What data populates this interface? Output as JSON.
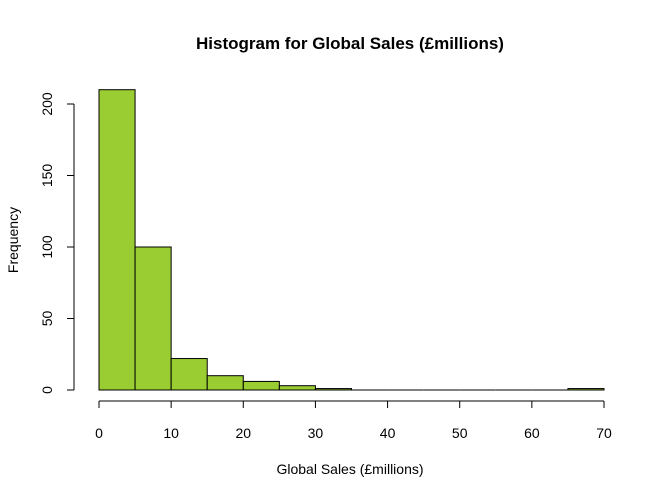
{
  "chart_data": {
    "type": "bar",
    "title": "Histogram for Global Sales (£millions)",
    "xlabel": "Global Sales (£millions)",
    "ylabel": "Frequency",
    "bin_edges": [
      0,
      5,
      10,
      15,
      20,
      25,
      30,
      35,
      40,
      45,
      50,
      55,
      60,
      65,
      70
    ],
    "values": [
      210,
      100,
      22,
      10,
      6,
      3,
      1,
      0,
      0,
      0,
      0,
      0,
      0,
      1
    ],
    "xlim": [
      0,
      70
    ],
    "ylim": [
      0,
      210
    ],
    "x_ticks": [
      0,
      10,
      20,
      30,
      40,
      50,
      60,
      70
    ],
    "y_ticks": [
      0,
      50,
      100,
      150,
      200
    ],
    "bar_color": "#9ACD32",
    "grid": false
  }
}
